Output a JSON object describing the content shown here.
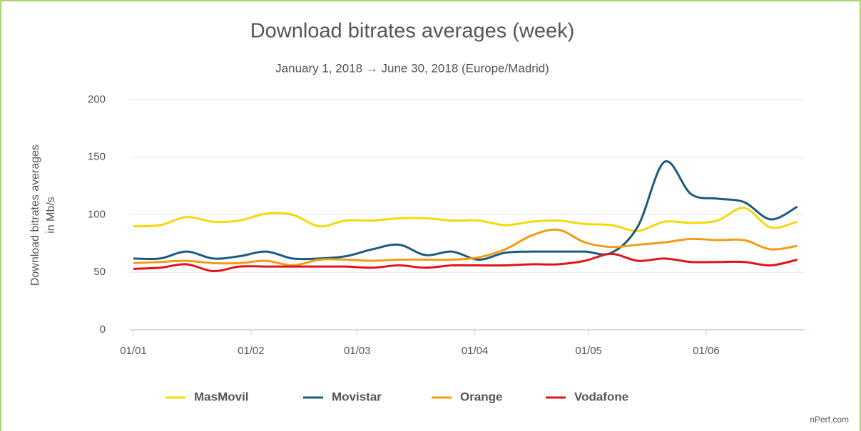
{
  "chart_data": {
    "type": "line",
    "title": "Download bitrates averages (week)",
    "subtitle": "January 1, 2018 → June 30, 2018 (Europe/Madrid)",
    "ylabel": [
      "Download bitrates averages",
      "in Mb/s"
    ],
    "source": "nPerf.com",
    "x": [
      0,
      7,
      14,
      21,
      28,
      35,
      42,
      49,
      56,
      63,
      70,
      77,
      84,
      91,
      98,
      105,
      112,
      119,
      126,
      133,
      140,
      147,
      154,
      161,
      168,
      175
    ],
    "xlim": [
      -1,
      177
    ],
    "xticks": [
      {
        "value": 0,
        "label": "01/01"
      },
      {
        "value": 31,
        "label": "01/02"
      },
      {
        "value": 59,
        "label": "01/03"
      },
      {
        "value": 90,
        "label": "01/04"
      },
      {
        "value": 120,
        "label": "01/05"
      },
      {
        "value": 151,
        "label": "01/06"
      }
    ],
    "ylim": [
      0,
      200
    ],
    "yticks": [
      0,
      50,
      100,
      150,
      200
    ],
    "grid": true,
    "legend": "bottom",
    "series": [
      {
        "name": "MasMovil",
        "color": "#f5d90a",
        "values": [
          90,
          91,
          98,
          94,
          95,
          101,
          100,
          90,
          95,
          95,
          97,
          97,
          95,
          95,
          91,
          94,
          95,
          92,
          91,
          86,
          94,
          93,
          95,
          106,
          89,
          94
        ]
      },
      {
        "name": "Movistar",
        "color": "#1a5b7e",
        "values": [
          62,
          62,
          68,
          62,
          64,
          68,
          62,
          62,
          64,
          70,
          74,
          65,
          68,
          61,
          67,
          68,
          68,
          68,
          67,
          90,
          146,
          118,
          114,
          111,
          96,
          107
        ]
      },
      {
        "name": "Orange",
        "color": "#f39c12",
        "values": [
          58,
          59,
          60,
          58,
          58,
          60,
          56,
          61,
          61,
          60,
          61,
          61,
          61,
          63,
          70,
          82,
          87,
          76,
          72,
          74,
          76,
          79,
          78,
          78,
          70,
          73
        ]
      },
      {
        "name": "Vodafone",
        "color": "#e3131b",
        "values": [
          53,
          54,
          57,
          51,
          55,
          55,
          55,
          55,
          55,
          54,
          56,
          54,
          56,
          56,
          56,
          57,
          57,
          60,
          66,
          60,
          62,
          59,
          59,
          59,
          56,
          61
        ]
      }
    ]
  }
}
